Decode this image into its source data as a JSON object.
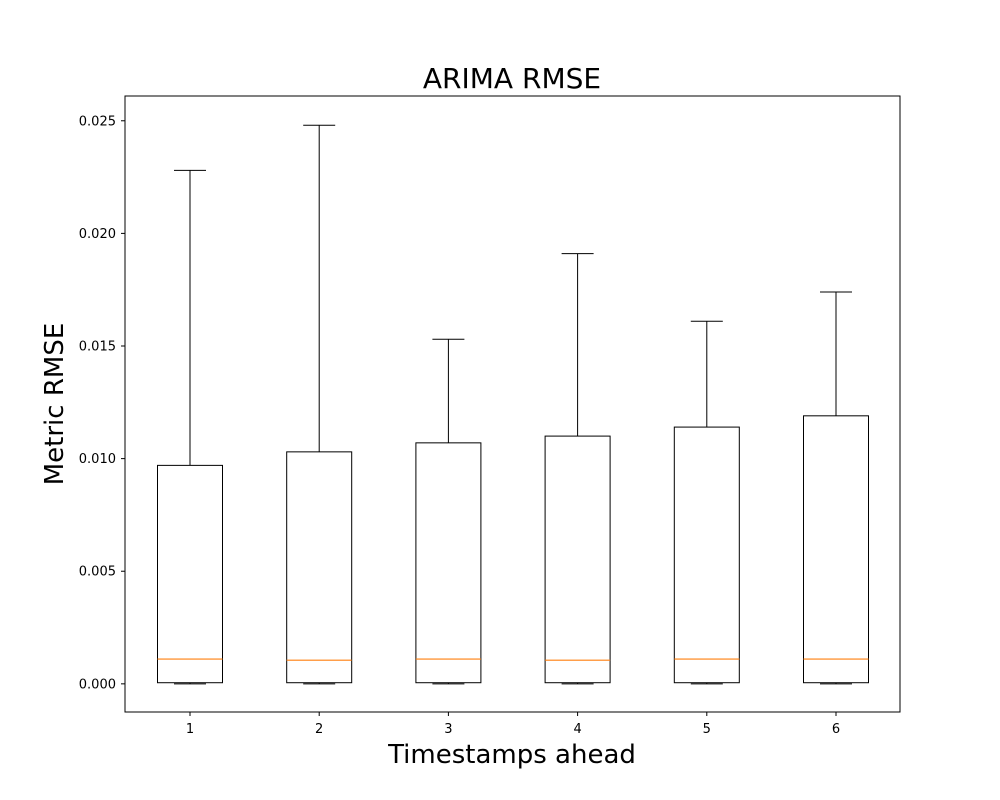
{
  "chart_data": {
    "type": "boxplot",
    "title": "ARIMA RMSE",
    "xlabel": "Timestamps ahead",
    "ylabel": "Metric RMSE",
    "categories": [
      "1",
      "2",
      "3",
      "4",
      "5",
      "6"
    ],
    "boxes": [
      {
        "whislo": 0.0,
        "q1": 5e-05,
        "median": 0.0011,
        "q3": 0.0097,
        "whishi": 0.0228
      },
      {
        "whislo": 0.0,
        "q1": 5e-05,
        "median": 0.00105,
        "q3": 0.0103,
        "whishi": 0.0248
      },
      {
        "whislo": 0.0,
        "q1": 5e-05,
        "median": 0.0011,
        "q3": 0.0107,
        "whishi": 0.0153
      },
      {
        "whislo": 0.0,
        "q1": 5e-05,
        "median": 0.00105,
        "q3": 0.011,
        "whishi": 0.0191
      },
      {
        "whislo": 0.0,
        "q1": 5e-05,
        "median": 0.0011,
        "q3": 0.0114,
        "whishi": 0.0161
      },
      {
        "whislo": 0.0,
        "q1": 5e-05,
        "median": 0.0011,
        "q3": 0.0119,
        "whishi": 0.0174
      }
    ],
    "ylim": [
      -0.00125,
      0.0261
    ],
    "yticks": [
      0.0,
      0.005,
      0.01,
      0.015,
      0.02,
      0.025
    ],
    "ytick_labels": [
      "0.000",
      "0.005",
      "0.010",
      "0.015",
      "0.020",
      "0.025"
    ],
    "grid": false,
    "colors": {
      "box": "#000000",
      "median": "#ff7f0e",
      "whisker": "#000000",
      "background": "#ffffff"
    }
  }
}
